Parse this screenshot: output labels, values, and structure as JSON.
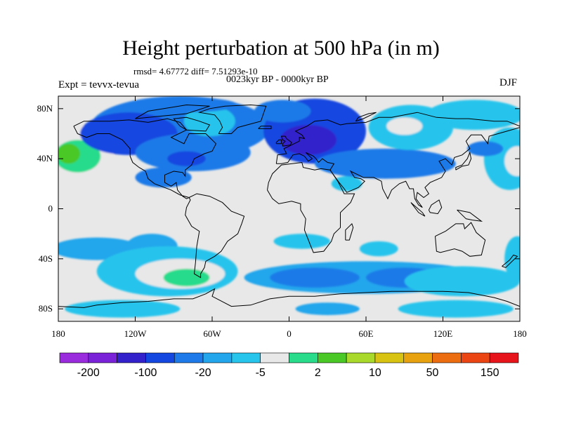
{
  "map": {
    "title": "Height perturbation at 500 hPa (in m)",
    "stats": "rmsd= 4.67772 diff= 7.51293e-10",
    "period": "0023kyr BP - 0000kyr BP",
    "experiment": "Expt = tevvx-tevua",
    "season": "DJF",
    "projection": "cylindrical-equidistant",
    "lon_range": [
      -180,
      180
    ],
    "lat_range": [
      -90,
      90
    ],
    "x_tick_labels": [
      "180",
      "120W",
      "60W",
      "0",
      "60E",
      "120E",
      "180"
    ],
    "x_tick_values": [
      -180,
      -120,
      -60,
      0,
      60,
      120,
      180
    ],
    "y_tick_labels": [
      "80N",
      "40N",
      "0",
      "40S",
      "80S"
    ],
    "y_tick_values": [
      80,
      40,
      0,
      -40,
      -80
    ],
    "background_color": "#e8e8e8",
    "coastline_color": "#000000",
    "field_blobs": [
      {
        "lon": -165,
        "lat": 45,
        "rlon": 28,
        "rlat": 22,
        "level": 7
      },
      {
        "lon": -165,
        "lat": 42,
        "rlon": 18,
        "rlat": 13,
        "level": 8
      },
      {
        "lon": -172,
        "lat": 44,
        "rlon": 9,
        "rlat": 8,
        "level": 9
      },
      {
        "lon": -85,
        "lat": 65,
        "rlon": 70,
        "rlat": 25,
        "level": 4
      },
      {
        "lon": -125,
        "lat": 60,
        "rlon": 38,
        "rlat": 17,
        "level": 3
      },
      {
        "lon": -75,
        "lat": 45,
        "rlon": 45,
        "rlat": 15,
        "level": 4
      },
      {
        "lon": -80,
        "lat": 40,
        "rlon": 15,
        "rlat": 6,
        "level": 3
      },
      {
        "lon": -98,
        "lat": 25,
        "rlon": 22,
        "rlat": 8,
        "level": 4
      },
      {
        "lon": -62,
        "lat": 70,
        "rlon": 20,
        "rlat": 12,
        "level": 6
      },
      {
        "lon": -82,
        "lat": 83,
        "rlon": 42,
        "rlat": 6,
        "level": 4
      },
      {
        "lon": 20,
        "lat": 62,
        "rlon": 40,
        "rlat": 26,
        "level": 3
      },
      {
        "lon": 15,
        "lat": 55,
        "rlon": 22,
        "rlat": 12,
        "level": 2
      },
      {
        "lon": -5,
        "lat": 78,
        "rlon": 22,
        "rlat": 9,
        "level": 4
      },
      {
        "lon": 75,
        "lat": 36,
        "rlon": 55,
        "rlat": 12,
        "level": 4
      },
      {
        "lon": 95,
        "lat": 65,
        "rlon": 33,
        "rlat": 18,
        "level": 6
      },
      {
        "lon": 90,
        "lat": 66,
        "rlon": 14,
        "rlat": 7,
        "level": 7
      },
      {
        "lon": 145,
        "lat": 75,
        "rlon": 38,
        "rlat": 12,
        "level": 6
      },
      {
        "lon": 172,
        "lat": 40,
        "rlon": 20,
        "rlat": 25,
        "level": 6
      },
      {
        "lon": 178,
        "lat": 38,
        "rlon": 10,
        "rlat": 12,
        "level": 7
      },
      {
        "lon": 45,
        "lat": 20,
        "rlon": 12,
        "rlat": 6,
        "level": 6
      },
      {
        "lon": 153,
        "lat": 48,
        "rlon": 14,
        "rlat": 6,
        "level": 4
      },
      {
        "lon": -150,
        "lat": -32,
        "rlon": 35,
        "rlat": 9,
        "level": 5
      },
      {
        "lon": -107,
        "lat": -30,
        "rlon": 20,
        "rlat": 10,
        "level": 5
      },
      {
        "lon": -95,
        "lat": -50,
        "rlon": 55,
        "rlat": 20,
        "level": 6
      },
      {
        "lon": -85,
        "lat": -52,
        "rlon": 35,
        "rlat": 12,
        "level": 7
      },
      {
        "lon": -80,
        "lat": -55,
        "rlon": 18,
        "rlat": 7,
        "level": 8
      },
      {
        "lon": 60,
        "lat": -55,
        "rlon": 95,
        "rlat": 13,
        "level": 5
      },
      {
        "lon": 20,
        "lat": -55,
        "rlon": 35,
        "rlat": 8,
        "level": 4
      },
      {
        "lon": 90,
        "lat": -55,
        "rlon": 30,
        "rlat": 8,
        "level": 4
      },
      {
        "lon": 135,
        "lat": -58,
        "rlon": 45,
        "rlat": 12,
        "level": 6
      },
      {
        "lon": 10,
        "lat": -26,
        "rlon": 22,
        "rlat": 6,
        "level": 6
      },
      {
        "lon": 70,
        "lat": -32,
        "rlon": 15,
        "rlat": 6,
        "level": 6
      },
      {
        "lon": 178,
        "lat": -40,
        "rlon": 10,
        "rlat": 18,
        "level": 6
      },
      {
        "lon": -130,
        "lat": -80,
        "rlon": 45,
        "rlat": 7,
        "level": 6
      },
      {
        "lon": 130,
        "lat": -80,
        "rlon": 45,
        "rlat": 7,
        "level": 6
      },
      {
        "lon": 30,
        "lat": -80,
        "rlon": 25,
        "rlat": 5,
        "level": 5
      }
    ]
  },
  "colorbar": {
    "colors": [
      "#9a2cdd",
      "#7a22d8",
      "#3322cc",
      "#1447e0",
      "#1e7ae8",
      "#24a6ec",
      "#27c4ec",
      "#e8e8e8",
      "#28dc8c",
      "#4ac826",
      "#a9d92a",
      "#d8c312",
      "#e8a20f",
      "#ec6d10",
      "#ec4514",
      "#e8141c"
    ],
    "labels": [
      "-200",
      "-100",
      "-20",
      "-5",
      "2",
      "10",
      "50",
      "150"
    ],
    "label_after_box": [
      1,
      3,
      5,
      7,
      9,
      11,
      13,
      15
    ]
  }
}
